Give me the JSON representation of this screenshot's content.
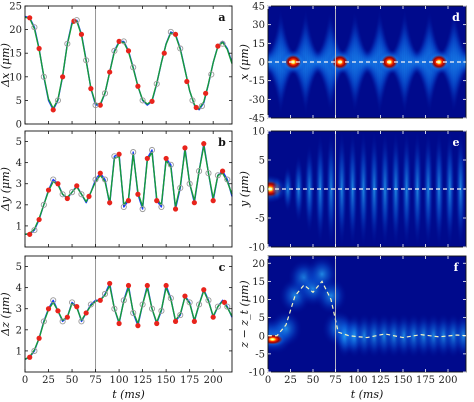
{
  "chart_data": [
    {
      "panel": "a",
      "type": "line",
      "ylabel": "Δx (μm)",
      "xlabel": "",
      "xlim": [
        0,
        220
      ],
      "ylim": [
        0,
        25
      ],
      "xticks": [
        0,
        25,
        50,
        75,
        100,
        125,
        150,
        175,
        200
      ],
      "yticks": [
        0,
        5,
        10,
        15,
        20,
        25
      ],
      "vline_x": 75,
      "series": [
        {
          "style": "blue-line",
          "x": [
            0,
            5,
            10,
            15,
            20,
            25,
            30,
            35,
            40,
            45,
            50,
            55,
            60,
            65,
            70,
            75,
            80,
            85,
            90,
            95,
            100,
            105,
            110,
            115,
            120,
            125,
            130,
            135,
            140,
            145,
            150,
            155,
            160,
            165,
            170,
            175,
            180,
            185,
            190,
            195,
            200,
            205,
            210,
            215,
            220
          ],
          "values": [
            22.8,
            22.5,
            20.5,
            16,
            10,
            5,
            3,
            5,
            10,
            17,
            21.5,
            22,
            19,
            13.5,
            7.5,
            4,
            4,
            6.5,
            11,
            15.5,
            17.5,
            17.5,
            15.5,
            12,
            8,
            5,
            4,
            4.8,
            8.5,
            13,
            17,
            19.5,
            19,
            16,
            11.5,
            7,
            4,
            3,
            4.5,
            8.5,
            13,
            16.5,
            17.5,
            16,
            13
          ]
        },
        {
          "style": "green-line",
          "x": [
            0,
            5,
            10,
            15,
            20,
            25,
            30,
            35,
            40,
            45,
            50,
            55,
            60,
            65,
            70,
            75,
            80,
            85,
            90,
            95,
            100,
            105,
            110,
            115,
            120,
            125,
            130,
            135,
            140,
            145,
            150,
            155,
            160,
            165,
            170,
            175,
            180,
            185,
            190,
            195,
            200,
            205,
            210,
            215,
            220
          ],
          "values": [
            22.6,
            22.4,
            20.2,
            15.8,
            10.2,
            5.3,
            3.3,
            5.2,
            10.2,
            16.8,
            21.2,
            21.8,
            18.8,
            13.3,
            7.6,
            4.3,
            4.2,
            6.6,
            11,
            15.3,
            17.3,
            17.3,
            15.3,
            11.8,
            8,
            5.1,
            4.2,
            5,
            8.6,
            13,
            16.9,
            19.3,
            18.8,
            15.8,
            11.4,
            7,
            4.1,
            3.2,
            4.7,
            8.6,
            13,
            16.4,
            17.3,
            15.8,
            12.8
          ]
        },
        {
          "style": "red-markers",
          "x": [
            5,
            15,
            30,
            40,
            52,
            60,
            70,
            80,
            90,
            100,
            110,
            120,
            135,
            148,
            160,
            172,
            182,
            192,
            205
          ],
          "values": [
            22.5,
            16,
            3,
            10,
            21.8,
            19,
            7.5,
            4,
            11,
            17.5,
            15.5,
            8,
            4.8,
            15,
            19,
            9,
            3.5,
            6.5,
            16.5
          ]
        },
        {
          "style": "open-markers",
          "x": [
            10,
            20,
            35,
            45,
            55,
            65,
            75,
            85,
            95,
            105,
            115,
            125,
            140,
            155,
            165,
            178,
            188,
            198,
            210
          ],
          "values": [
            20.5,
            10,
            5,
            17,
            22,
            13.5,
            4,
            6.5,
            15.5,
            17.5,
            12,
            5,
            8.5,
            19.5,
            16,
            5,
            3.8,
            10.5,
            17
          ]
        }
      ]
    },
    {
      "panel": "b",
      "type": "line",
      "ylabel": "Δy (μm)",
      "xlabel": "",
      "xlim": [
        0,
        220
      ],
      "ylim": [
        0,
        5.5
      ],
      "xticks": [
        0,
        25,
        50,
        75,
        100,
        125,
        150,
        175,
        200
      ],
      "yticks": [
        1,
        2,
        3,
        4,
        5
      ],
      "vline_x": 75,
      "series": [
        {
          "style": "blue-line",
          "x": [
            0,
            5,
            10,
            15,
            20,
            25,
            30,
            35,
            40,
            45,
            50,
            55,
            60,
            65,
            70,
            75,
            80,
            85,
            90,
            95,
            100,
            105,
            110,
            115,
            120,
            125,
            130,
            135,
            140,
            145,
            150,
            155,
            160,
            165,
            170,
            175,
            180,
            185,
            190,
            195,
            200,
            205,
            210,
            215,
            220
          ],
          "values": [
            0.6,
            0.6,
            0.8,
            1.3,
            2,
            2.7,
            3.2,
            3,
            2.5,
            2.3,
            2.6,
            2.9,
            2.5,
            2.1,
            2.6,
            3.2,
            3.5,
            3.2,
            2,
            4.3,
            4.4,
            1.9,
            2.2,
            4.5,
            2.5,
            1.8,
            4.2,
            4.6,
            2.2,
            1.9,
            4.2,
            3.9,
            1.8,
            2.8,
            4.7,
            3,
            2.1,
            3.6,
            4.9,
            3.5,
            2.2,
            3.4,
            3.6,
            3.2,
            2.4
          ]
        },
        {
          "style": "green-line",
          "x": [
            0,
            5,
            10,
            15,
            20,
            25,
            30,
            35,
            40,
            45,
            50,
            55,
            60,
            65,
            70,
            75,
            80,
            85,
            90,
            95,
            100,
            105,
            110,
            115,
            120,
            125,
            130,
            135,
            140,
            145,
            150,
            155,
            160,
            165,
            170,
            175,
            180,
            185,
            190,
            195,
            200,
            205,
            210,
            215,
            220
          ],
          "values": [
            0.6,
            0.65,
            0.85,
            1.35,
            2,
            2.65,
            3.1,
            2.95,
            2.5,
            2.35,
            2.6,
            2.85,
            2.5,
            2.15,
            2.6,
            3.1,
            3.4,
            3.1,
            2.1,
            4.2,
            4.3,
            2,
            2.3,
            4.4,
            2.6,
            1.9,
            4.1,
            4.5,
            2.3,
            2,
            4.1,
            3.8,
            1.9,
            2.9,
            4.6,
            3,
            2.2,
            3.6,
            4.8,
            3.5,
            2.3,
            3.4,
            3.5,
            3.1,
            2.5
          ]
        },
        {
          "style": "red-markers",
          "x": [
            5,
            15,
            25,
            35,
            45,
            55,
            68,
            80,
            90,
            100,
            110,
            120,
            130,
            140,
            150,
            160,
            170,
            180,
            190,
            200,
            210
          ],
          "values": [
            0.6,
            1.3,
            2.7,
            3,
            2.3,
            2.9,
            2.4,
            3.5,
            2.1,
            4.4,
            2.2,
            2.5,
            4.2,
            2.2,
            4.2,
            1.8,
            4.7,
            2.1,
            4.9,
            2.2,
            3.6
          ]
        },
        {
          "style": "open-markers",
          "x": [
            10,
            20,
            30,
            40,
            50,
            60,
            75,
            85,
            95,
            105,
            115,
            125,
            135,
            145,
            155,
            165,
            175,
            185,
            195,
            205,
            215
          ],
          "values": [
            0.8,
            2,
            3.2,
            2.5,
            2.6,
            2.5,
            3.2,
            3.2,
            4.3,
            1.9,
            4.5,
            1.8,
            4.6,
            1.9,
            3.9,
            2.8,
            3,
            3.6,
            3.5,
            3.4,
            3.2
          ]
        }
      ]
    },
    {
      "panel": "c",
      "type": "line",
      "ylabel": "Δz (μm)",
      "xlabel": "t (ms)",
      "xlim": [
        0,
        220
      ],
      "ylim": [
        0,
        5.5
      ],
      "xticks": [
        0,
        25,
        50,
        75,
        100,
        125,
        150,
        175,
        200
      ],
      "yticks": [
        1,
        2,
        3,
        4,
        5
      ],
      "vline_x": 75,
      "series": [
        {
          "style": "blue-line",
          "x": [
            0,
            5,
            10,
            15,
            20,
            25,
            30,
            35,
            40,
            45,
            50,
            55,
            60,
            65,
            70,
            75,
            80,
            85,
            90,
            95,
            100,
            105,
            110,
            115,
            120,
            125,
            130,
            135,
            140,
            145,
            150,
            155,
            160,
            165,
            170,
            175,
            180,
            185,
            190,
            195,
            200,
            205,
            210,
            215,
            220
          ],
          "values": [
            0.6,
            0.7,
            1,
            1.6,
            2.4,
            3,
            3.4,
            2.9,
            2.4,
            2.6,
            3.3,
            3.1,
            2.4,
            2.8,
            3.2,
            3.4,
            3.4,
            3.7,
            4.2,
            3,
            2.3,
            3.4,
            4.1,
            2.8,
            2.2,
            3.2,
            4.1,
            3,
            2.3,
            2.9,
            4.1,
            3.5,
            2.4,
            2.7,
            3.6,
            3.3,
            2.4,
            3.2,
            3.9,
            3.4,
            2.6,
            3.1,
            3.4,
            3.1,
            2.6
          ]
        },
        {
          "style": "green-line",
          "x": [
            0,
            5,
            10,
            15,
            20,
            25,
            30,
            35,
            40,
            45,
            50,
            55,
            60,
            65,
            70,
            75,
            80,
            85,
            90,
            95,
            100,
            105,
            110,
            115,
            120,
            125,
            130,
            135,
            140,
            145,
            150,
            155,
            160,
            165,
            170,
            175,
            180,
            185,
            190,
            195,
            200,
            205,
            210,
            215,
            220
          ],
          "values": [
            0.6,
            0.72,
            1.05,
            1.6,
            2.35,
            2.95,
            3.3,
            2.9,
            2.45,
            2.6,
            3.25,
            3.05,
            2.45,
            2.8,
            3.15,
            3.35,
            3.4,
            3.65,
            4.1,
            3,
            2.35,
            3.35,
            4,
            2.85,
            2.3,
            3.2,
            4,
            3,
            2.35,
            2.95,
            4,
            3.45,
            2.45,
            2.75,
            3.55,
            3.25,
            2.45,
            3.2,
            3.85,
            3.35,
            2.65,
            3.1,
            3.35,
            3.05,
            2.65
          ]
        },
        {
          "style": "red-markers",
          "x": [
            5,
            15,
            25,
            35,
            45,
            55,
            65,
            80,
            90,
            100,
            110,
            120,
            130,
            140,
            150,
            160,
            170,
            180,
            190,
            200,
            212
          ],
          "values": [
            0.7,
            1.6,
            3,
            2.9,
            2.6,
            3.1,
            2.8,
            3.4,
            4.2,
            2.3,
            4.1,
            2.2,
            4.1,
            2.3,
            4.1,
            2.4,
            3.6,
            2.4,
            3.9,
            2.6,
            3.3
          ]
        },
        {
          "style": "open-markers",
          "x": [
            10,
            20,
            30,
            40,
            50,
            60,
            70,
            85,
            95,
            105,
            115,
            125,
            135,
            145,
            155,
            165,
            175,
            185,
            195,
            205,
            215
          ],
          "values": [
            1,
            2.4,
            3.4,
            2.4,
            3.3,
            2.4,
            3.2,
            3.7,
            3,
            3.4,
            2.8,
            3.2,
            3,
            2.9,
            3.5,
            2.7,
            3.3,
            3.2,
            3.4,
            3.1,
            3.1
          ]
        }
      ]
    },
    {
      "panel": "d",
      "type": "heatmap",
      "ylabel": "x (μm)",
      "xlabel": "",
      "xlim": [
        0,
        220
      ],
      "ylim": [
        -45,
        45
      ],
      "xticks": [
        0,
        25,
        50,
        75,
        100,
        125,
        150,
        175,
        200
      ],
      "yticks": [
        -45,
        -30,
        -15,
        0,
        15,
        30,
        45
      ],
      "vline_x": 75,
      "hot_spots_t": [
        28,
        80,
        135,
        190
      ]
    },
    {
      "panel": "e",
      "type": "heatmap",
      "ylabel": "y (μm)",
      "xlabel": "",
      "xlim": [
        0,
        220
      ],
      "ylim": [
        -10,
        10
      ],
      "xticks": [
        0,
        25,
        50,
        75,
        100,
        125,
        150,
        175,
        200
      ],
      "yticks": [
        -10,
        -5,
        0,
        5,
        10
      ],
      "vline_x": 75
    },
    {
      "panel": "f",
      "type": "heatmap",
      "ylabel": "z − z_t (μm)",
      "xlabel": "t (ms)",
      "xlim": [
        0,
        220
      ],
      "ylim": [
        -10,
        22
      ],
      "xticks": [
        0,
        25,
        50,
        75,
        100,
        125,
        150,
        175,
        200
      ],
      "yticks": [
        -10,
        -5,
        0,
        5,
        10,
        15,
        20
      ],
      "vline_x": 75
    }
  ]
}
